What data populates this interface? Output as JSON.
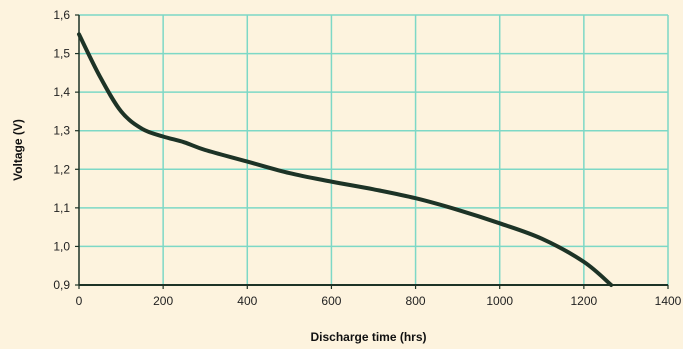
{
  "chart_data": {
    "type": "line",
    "title": "",
    "xlabel": "Discharge time (hrs)",
    "ylabel": "Voltage (V)",
    "xlim": [
      0,
      1400
    ],
    "ylim": [
      0.9,
      1.6
    ],
    "xticks": [
      0,
      200,
      400,
      600,
      800,
      1000,
      1200,
      1400
    ],
    "xtick_labels": [
      "0",
      "200",
      "400",
      "600",
      "800",
      "1000",
      "1200",
      "1400"
    ],
    "yticks": [
      0.9,
      1.0,
      1.1,
      1.2,
      1.3,
      1.4,
      1.5,
      1.6
    ],
    "ytick_labels": [
      "0,9",
      "1,0",
      "1,1",
      "1,2",
      "1,3",
      "1,4",
      "1,5",
      "1,6"
    ],
    "grid": true,
    "colors": {
      "background": "#fdf3de",
      "grid": "#7dd8c6",
      "line": "#1d3326",
      "axis": "#1d3326"
    },
    "series": [
      {
        "x": [
          0,
          50,
          100,
          150,
          200,
          250,
          300,
          400,
          500,
          600,
          700,
          800,
          900,
          1000,
          1100,
          1200,
          1265
        ],
        "values": [
          1.55,
          1.44,
          1.35,
          1.305,
          1.285,
          1.27,
          1.25,
          1.22,
          1.19,
          1.168,
          1.148,
          1.125,
          1.095,
          1.06,
          1.02,
          0.96,
          0.9
        ]
      }
    ]
  }
}
